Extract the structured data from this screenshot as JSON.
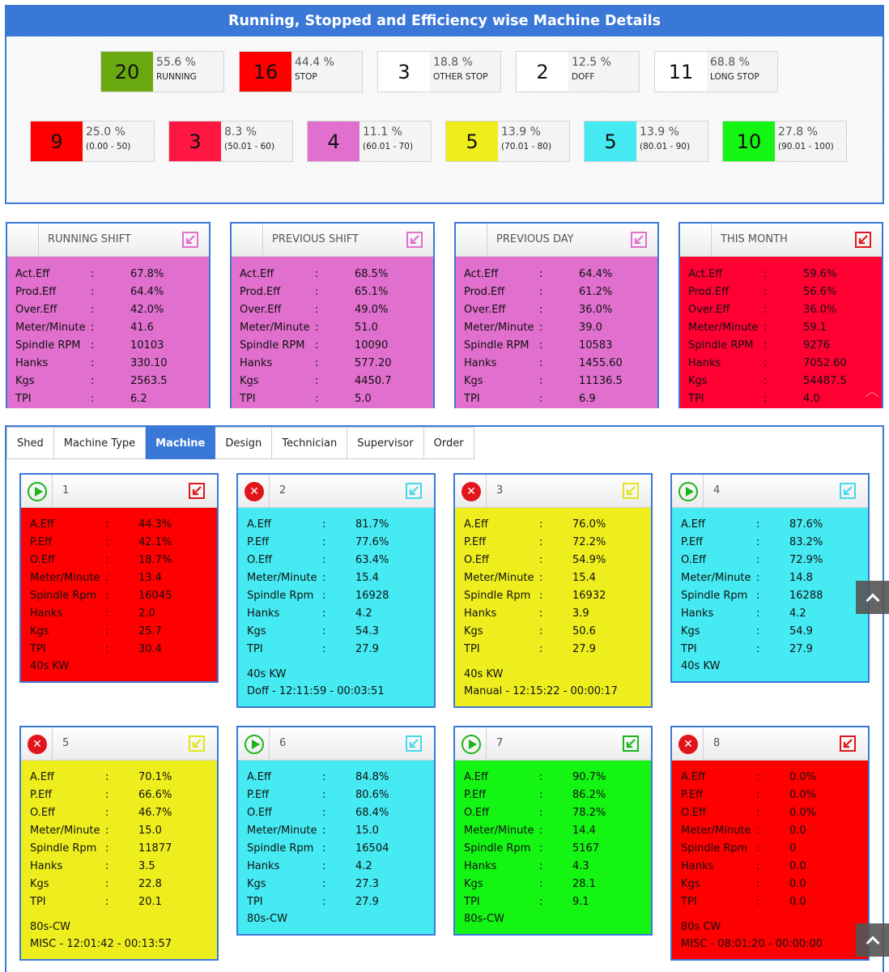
{
  "title": "Running, Stopped and Efficiency wise Machine Details",
  "colors": {
    "accent": "#3a78d8",
    "running": "#6aa80f",
    "stop": "#ff0000",
    "band_0_50": "#ff0000",
    "band_50_60": "#ff1744",
    "band_60_70": "#e06fcd",
    "band_70_80": "#eeee1e",
    "band_80_90": "#46eaf2",
    "band_90_100": "#14f514"
  },
  "status_stats": [
    {
      "count": "20",
      "pct": "55.6 %",
      "label": "RUNNING",
      "color": "#6aa80f"
    },
    {
      "count": "16",
      "pct": "44.4 %",
      "label": "STOP",
      "color": "#ff0000"
    },
    {
      "count": "3",
      "pct": "18.8 %",
      "label": "OTHER STOP",
      "color": "#ffffff"
    },
    {
      "count": "2",
      "pct": "12.5 %",
      "label": "DOFF",
      "color": "#ffffff"
    },
    {
      "count": "11",
      "pct": "68.8 %",
      "label": "LONG STOP",
      "color": "#ffffff"
    }
  ],
  "efficiency_stats": [
    {
      "count": "9",
      "pct": "25.0 %",
      "label": "(0.00 - 50)",
      "color": "#ff0000"
    },
    {
      "count": "3",
      "pct": "8.3 %",
      "label": "(50.01 - 60)",
      "color": "#ff1744"
    },
    {
      "count": "4",
      "pct": "11.1 %",
      "label": "(60.01 - 70)",
      "color": "#e06fcd"
    },
    {
      "count": "5",
      "pct": "13.9 %",
      "label": "(70.01 - 80)",
      "color": "#eeee1e"
    },
    {
      "count": "5",
      "pct": "13.9 %",
      "label": "(80.01 - 90)",
      "color": "#46eaf2"
    },
    {
      "count": "10",
      "pct": "27.8 %",
      "label": "(90.01 - 100)",
      "color": "#14f514"
    }
  ],
  "shifts": [
    {
      "title": "RUNNING SHIFT",
      "color": "#e06fcd",
      "icon_color": "#e06fcd",
      "icon": "expand-arrow-icon",
      "rows": [
        [
          "Act.Eff",
          ":",
          "67.8%"
        ],
        [
          "Prod.Eff",
          ":",
          "64.4%"
        ],
        [
          "Over.Eff",
          ":",
          "42.0%"
        ],
        [
          "Meter/Minute",
          ":",
          "41.6"
        ],
        [
          "Spindle RPM",
          ":",
          "10103"
        ],
        [
          "Hanks",
          ":",
          "330.10"
        ],
        [
          "Kgs",
          ":",
          "2563.5"
        ],
        [
          "TPI",
          ":",
          "6.2"
        ]
      ]
    },
    {
      "title": "PREVIOUS SHIFT",
      "color": "#e06fcd",
      "icon_color": "#e06fcd",
      "icon": "expand-arrow-icon",
      "rows": [
        [
          "Act.Eff",
          ":",
          "68.5%"
        ],
        [
          "Prod.Eff",
          ":",
          "65.1%"
        ],
        [
          "Over.Eff",
          ":",
          "49.0%"
        ],
        [
          "Meter/Minute",
          ":",
          "51.0"
        ],
        [
          "Spindle RPM",
          ":",
          "10090"
        ],
        [
          "Hanks",
          ":",
          "577.20"
        ],
        [
          "Kgs",
          ":",
          "4450.7"
        ],
        [
          "TPI",
          ":",
          "5.0"
        ]
      ]
    },
    {
      "title": "PREVIOUS DAY",
      "color": "#e06fcd",
      "icon_color": "#e06fcd",
      "icon": "expand-arrow-icon",
      "rows": [
        [
          "Act.Eff",
          ":",
          "64.4%"
        ],
        [
          "Prod.Eff",
          ":",
          "61.2%"
        ],
        [
          "Over.Eff",
          ":",
          "36.0%"
        ],
        [
          "Meter/Minute",
          ":",
          "39.0"
        ],
        [
          "Spindle RPM",
          ":",
          "10583"
        ],
        [
          "Hanks",
          ":",
          "1455.60"
        ],
        [
          "Kgs",
          ":",
          "11136.5"
        ],
        [
          "TPI",
          ":",
          "6.9"
        ]
      ]
    },
    {
      "title": "THIS MONTH",
      "color": "#ff0033",
      "icon_color": "#e0161c",
      "icon": "expand-arrow-icon",
      "rows": [
        [
          "Act.Eff",
          ":",
          "59.6%"
        ],
        [
          "Prod.Eff",
          ":",
          "56.6%"
        ],
        [
          "Over.Eff",
          ":",
          "36.0%"
        ],
        [
          "Meter/Minute",
          ":",
          "59.1"
        ],
        [
          "Spindle RPM",
          ":",
          "9276"
        ],
        [
          "Hanks",
          ":",
          "7052.60"
        ],
        [
          "Kgs",
          ":",
          "54487.5"
        ],
        [
          "TPI",
          ":",
          "4.0"
        ]
      ]
    }
  ],
  "tabs": [
    {
      "label": "Shed",
      "active": false
    },
    {
      "label": "Machine Type",
      "active": false
    },
    {
      "label": "Machine",
      "active": true
    },
    {
      "label": "Design",
      "active": false
    },
    {
      "label": "Technician",
      "active": false
    },
    {
      "label": "Supervisor",
      "active": false
    },
    {
      "label": "Order",
      "active": false
    }
  ],
  "machines": [
    {
      "id": "1",
      "status": "running",
      "status_icon": "play-icon",
      "color": "#ff0000",
      "icon_color": "#e0161c",
      "rows": [
        [
          "A.Eff",
          ":",
          "44.3%"
        ],
        [
          "P.Eff",
          ":",
          "42.1%"
        ],
        [
          "O.Eff",
          ":",
          "18.7%"
        ],
        [
          "Meter/Minute",
          ":",
          "13.4"
        ],
        [
          "Spindle Rpm",
          ":",
          "16045"
        ],
        [
          "Hanks",
          ":",
          "2.0"
        ],
        [
          "Kgs",
          ":",
          "25.7"
        ],
        [
          "TPI",
          ":",
          "30.4"
        ]
      ],
      "footer": [
        "40s KW"
      ]
    },
    {
      "id": "2",
      "status": "stopped",
      "status_icon": "stop-icon",
      "color": "#46eaf2",
      "icon_color": "#46d8ea",
      "rows": [
        [
          "A.Eff",
          ":",
          "81.7%"
        ],
        [
          "P.Eff",
          ":",
          "77.6%"
        ],
        [
          "O.Eff",
          ":",
          "63.4%"
        ],
        [
          "Meter/Minute",
          ":",
          "15.4"
        ],
        [
          "Spindle Rpm",
          ":",
          "16928"
        ],
        [
          "Hanks",
          ":",
          "4.2"
        ],
        [
          "Kgs",
          ":",
          "54.3"
        ],
        [
          "TPI",
          ":",
          "27.9"
        ]
      ],
      "footer": [
        "",
        "40s KW",
        "Doff - 12:11:59 - 00:03:51"
      ]
    },
    {
      "id": "3",
      "status": "stopped",
      "status_icon": "stop-icon",
      "color": "#eeee1e",
      "icon_color": "#e4e41a",
      "rows": [
        [
          "A.Eff",
          ":",
          "76.0%"
        ],
        [
          "P.Eff",
          ":",
          "72.2%"
        ],
        [
          "O.Eff",
          ":",
          "54.9%"
        ],
        [
          "Meter/Minute",
          ":",
          "15.4"
        ],
        [
          "Spindle Rpm",
          ":",
          "16932"
        ],
        [
          "Hanks",
          ":",
          "3.9"
        ],
        [
          "Kgs",
          ":",
          "50.6"
        ],
        [
          "TPI",
          ":",
          "27.9"
        ]
      ],
      "footer": [
        "",
        "40s KW",
        "Manual - 12:15:22 - 00:00:17"
      ]
    },
    {
      "id": "4",
      "status": "running",
      "status_icon": "play-icon",
      "color": "#46eaf2",
      "icon_color": "#46d8ea",
      "rows": [
        [
          "A.Eff",
          ":",
          "87.6%"
        ],
        [
          "P.Eff",
          ":",
          "83.2%"
        ],
        [
          "O.Eff",
          ":",
          "72.9%"
        ],
        [
          "Meter/Minute",
          ":",
          "14.8"
        ],
        [
          "Spindle Rpm",
          ":",
          "16288"
        ],
        [
          "Hanks",
          ":",
          "4.2"
        ],
        [
          "Kgs",
          ":",
          "54.9"
        ],
        [
          "TPI",
          ":",
          "27.9"
        ]
      ],
      "footer": [
        "40s KW"
      ]
    },
    {
      "id": "5",
      "status": "stopped",
      "status_icon": "stop-icon",
      "color": "#eeee1e",
      "icon_color": "#e4e41a",
      "rows": [
        [
          "A.Eff",
          ":",
          "70.1%"
        ],
        [
          "P.Eff",
          ":",
          "66.6%"
        ],
        [
          "O.Eff",
          ":",
          "46.7%"
        ],
        [
          "Meter/Minute",
          ":",
          "15.0"
        ],
        [
          "Spindle Rpm",
          ":",
          "11877"
        ],
        [
          "Hanks",
          ":",
          "3.5"
        ],
        [
          "Kgs",
          ":",
          "22.8"
        ],
        [
          "TPI",
          ":",
          "20.1"
        ]
      ],
      "footer": [
        "",
        "80s-CW",
        "MISC - 12:01:42 - 00:13:57"
      ]
    },
    {
      "id": "6",
      "status": "running",
      "status_icon": "play-icon",
      "color": "#46eaf2",
      "icon_color": "#46d8ea",
      "rows": [
        [
          "A.Eff",
          ":",
          "84.8%"
        ],
        [
          "P.Eff",
          ":",
          "80.6%"
        ],
        [
          "O.Eff",
          ":",
          "68.4%"
        ],
        [
          "Meter/Minute",
          ":",
          "15.0"
        ],
        [
          "Spindle Rpm",
          ":",
          "16504"
        ],
        [
          "Hanks",
          ":",
          "4.2"
        ],
        [
          "Kgs",
          ":",
          "27.3"
        ],
        [
          "TPI",
          ":",
          "27.9"
        ]
      ],
      "footer": [
        "80s-CW"
      ]
    },
    {
      "id": "7",
      "status": "running",
      "status_icon": "play-icon",
      "color": "#14f514",
      "icon_color": "#19b519",
      "rows": [
        [
          "A.Eff",
          ":",
          "90.7%"
        ],
        [
          "P.Eff",
          ":",
          "86.2%"
        ],
        [
          "O.Eff",
          ":",
          "78.2%"
        ],
        [
          "Meter/Minute",
          ":",
          "14.4"
        ],
        [
          "Spindle Rpm",
          ":",
          "5167"
        ],
        [
          "Hanks",
          ":",
          "4.3"
        ],
        [
          "Kgs",
          ":",
          "28.1"
        ],
        [
          "TPI",
          ":",
          "9.1"
        ]
      ],
      "footer": [
        "80s-CW"
      ]
    },
    {
      "id": "8",
      "status": "stopped",
      "status_icon": "stop-icon",
      "color": "#ff0000",
      "icon_color": "#e0161c",
      "rows": [
        [
          "A.Eff",
          ":",
          "0.0%"
        ],
        [
          "P.Eff",
          ":",
          "0.0%"
        ],
        [
          "O.Eff",
          ":",
          "0.0%"
        ],
        [
          "Meter/Minute",
          ":",
          "0.0"
        ],
        [
          "Spindle Rpm",
          ":",
          "0"
        ],
        [
          "Hanks",
          ":",
          "0.0"
        ],
        [
          "Kgs",
          ":",
          "0.0"
        ],
        [
          "TPI",
          ":",
          "0.0"
        ]
      ],
      "footer": [
        "",
        "80s CW",
        "MISC - 08:01:20 - 00:00:00"
      ]
    }
  ],
  "scroll_top_icon": "chevron-up-icon"
}
